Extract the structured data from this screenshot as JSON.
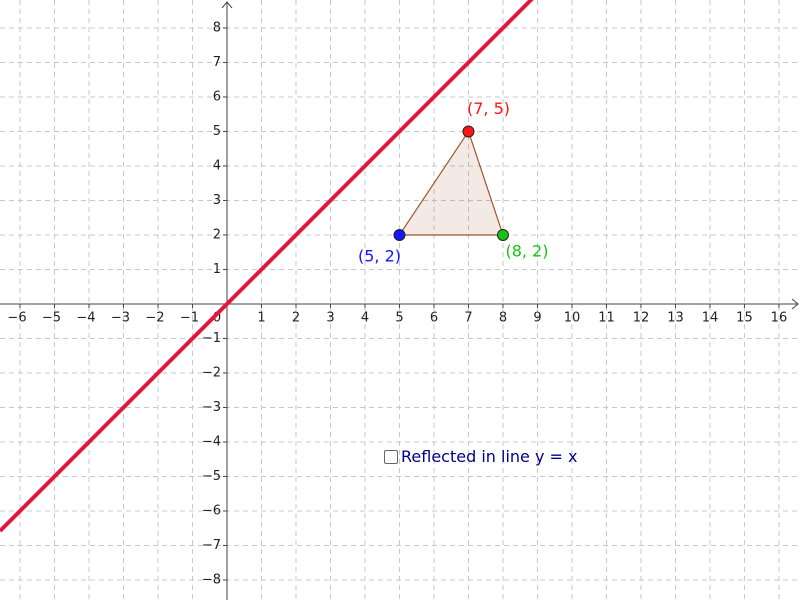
{
  "chart_data": {
    "type": "geometry",
    "xlim": [
      -6.58,
      16.61
    ],
    "ylim": [
      -8.58,
      8.81
    ],
    "xticks": [
      {
        "value": -6,
        "label": "−6"
      },
      {
        "value": -5,
        "label": "−5"
      },
      {
        "value": -4,
        "label": "−4"
      },
      {
        "value": -3,
        "label": "−3"
      },
      {
        "value": -2,
        "label": "−2"
      },
      {
        "value": -1,
        "label": "−1"
      },
      0,
      1,
      2,
      3,
      4,
      5,
      6,
      7,
      8,
      9,
      10,
      11,
      12,
      13,
      14,
      15,
      16
    ],
    "yticks": [
      {
        "value": -8,
        "label": "−8"
      },
      {
        "value": -7,
        "label": "−7"
      },
      {
        "value": -6,
        "label": "−6"
      },
      {
        "value": -5,
        "label": "−5"
      },
      {
        "value": -4,
        "label": "−4"
      },
      {
        "value": -3,
        "label": "−3"
      },
      {
        "value": -2,
        "label": "−2"
      },
      {
        "value": -1,
        "label": "−1"
      },
      1,
      2,
      3,
      4,
      5,
      6,
      7,
      8
    ],
    "grid": true,
    "line": {
      "slope": 1,
      "intercept": 0,
      "color": "#e3173e"
    },
    "polygon_color": "#a0522d",
    "points": [
      {
        "x": 5,
        "y": 2,
        "label": "(5, 2)",
        "color": "#1515ff"
      },
      {
        "x": 7,
        "y": 5,
        "label": "(7, 5)",
        "color": "#ff1515"
      },
      {
        "x": 8,
        "y": 2,
        "label": "(8, 2)",
        "color": "#15c415"
      }
    ]
  },
  "checkbox": {
    "label": "Reflected in line y = x",
    "checked": false
  }
}
